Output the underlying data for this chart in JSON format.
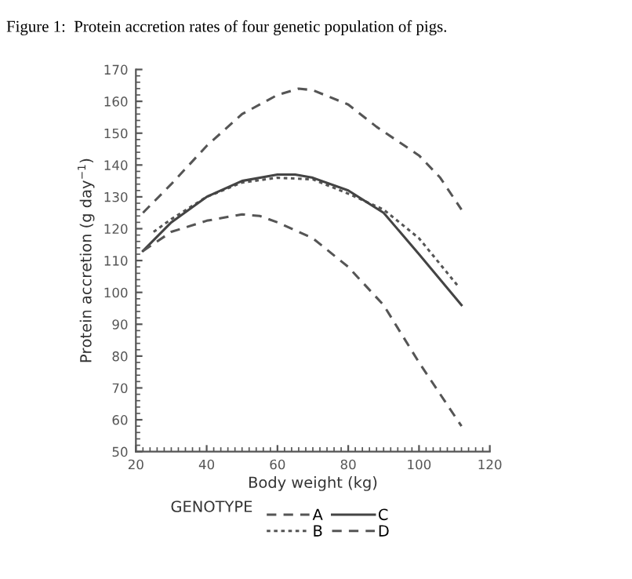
{
  "chart_data": {
    "type": "line",
    "title": "Figure 1:  Protein accretion rates of four genetic population of pigs.",
    "xlabel": "Body weight (kg)",
    "ylabel": "Protein accretion (g day$^{−1}$)",
    "legend_title": "GENOTYPE",
    "xlim": [
      20,
      120
    ],
    "xticks": [
      20,
      40,
      60,
      80,
      100,
      120
    ],
    "ylim": [
      50,
      170
    ],
    "yticks": [
      50,
      60,
      70,
      80,
      90,
      100,
      110,
      120,
      130,
      140,
      150,
      160,
      170
    ],
    "grid": false,
    "legend": "bottom",
    "marker": "none",
    "series": [
      {
        "name": "A",
        "color": "#555555",
        "line_style": "dashed",
        "x": [
          22,
          30,
          40,
          50,
          60,
          66,
          70,
          80,
          88,
          100,
          106,
          112
        ],
        "values": [
          125,
          134,
          146,
          156,
          162,
          164,
          163.5,
          159,
          152,
          143,
          136,
          126
        ]
      },
      {
        "name": "B",
        "color": "#555555",
        "line_style": "dotted",
        "x": [
          25,
          30,
          40,
          50,
          60,
          70,
          80,
          90,
          100,
          111
        ],
        "values": [
          119,
          123,
          130,
          134.5,
          136,
          135.5,
          131,
          126,
          117,
          102
        ]
      },
      {
        "name": "C",
        "color": "#444444",
        "line_style": "solid",
        "x": [
          22,
          30,
          40,
          50,
          60,
          65,
          70,
          80,
          90,
          100,
          112
        ],
        "values": [
          113,
          122,
          130,
          135,
          137,
          137,
          136,
          132,
          125,
          112,
          96
        ]
      },
      {
        "name": "D",
        "color": "#555555",
        "line_style": "dashed",
        "x": [
          22,
          30,
          40,
          50,
          55,
          60,
          70,
          80,
          90,
          100,
          112
        ],
        "values": [
          113,
          119,
          122.5,
          124.5,
          124,
          122,
          117,
          108,
          96,
          78,
          58
        ]
      }
    ]
  }
}
